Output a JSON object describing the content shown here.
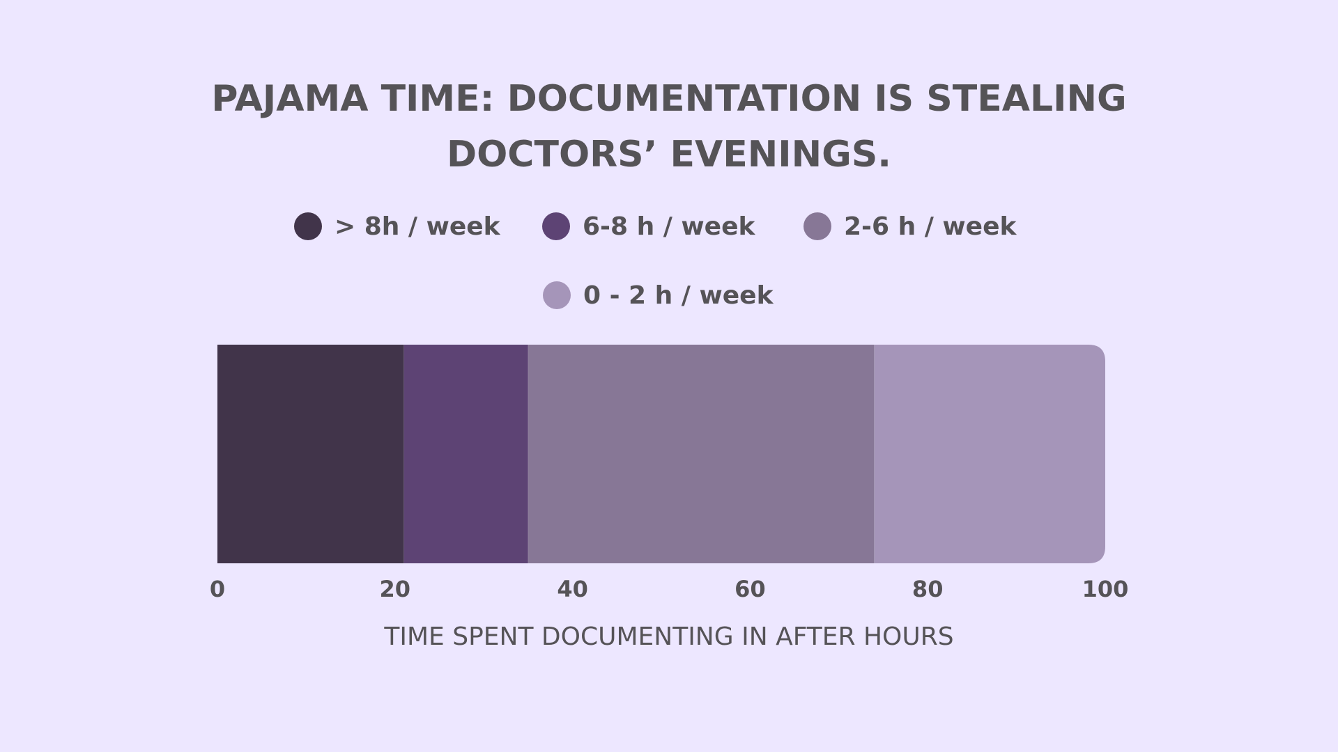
{
  "chart_data": {
    "type": "bar",
    "orientation": "horizontal",
    "stacked": true,
    "title": "PAJAMA TIME: DOCUMENTATION IS STEALING DOCTORS’ EVENINGS.",
    "xlabel": "TIME SPENT DOCUMENTING IN AFTER HOURS",
    "ylabel": "",
    "xlim": [
      0,
      100
    ],
    "x_ticks": [
      "0",
      "20",
      "40",
      "60",
      "80",
      "100"
    ],
    "legend_placement": "top",
    "grid": false,
    "series": [
      {
        "name": "> 8h / week",
        "value": 21,
        "color": "#41344a"
      },
      {
        "name": "6-8 h / week",
        "value": 14,
        "color": "#5d4374"
      },
      {
        "name": "2-6 h / week",
        "value": 39,
        "color": "#877796"
      },
      {
        "name": "0 - 2 h / week",
        "value": 26,
        "color": "#a595b9"
      }
    ]
  }
}
